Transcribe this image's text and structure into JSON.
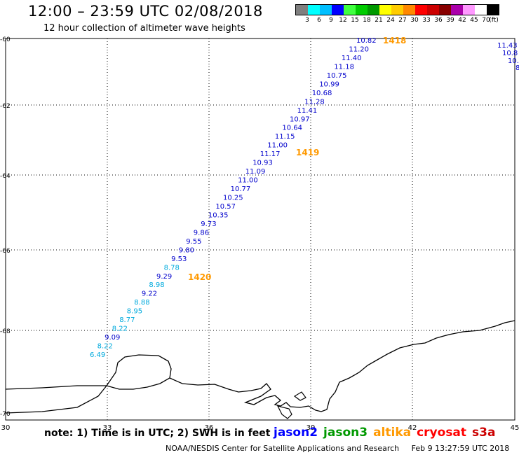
{
  "header": {
    "title": "12:00 – 23:59 UTC 02/08/2018",
    "subtitle": "12 hour collection of altimeter wave heights"
  },
  "legend": {
    "colors": [
      "#7f7f7f",
      "#00ffff",
      "#00bfff",
      "#0000ff",
      "#3fff3f",
      "#00cc00",
      "#009900",
      "#ffff00",
      "#ffcc00",
      "#ff8800",
      "#ff0000",
      "#cc0000",
      "#880000",
      "#aa00aa",
      "#ff99ff",
      "#ffffff",
      "#000000"
    ],
    "labels": [
      "3",
      "6",
      "9",
      "12",
      "15",
      "18",
      "21",
      "24",
      "27",
      "30",
      "33",
      "36",
      "39",
      "42",
      "45",
      "70",
      "(ft)"
    ]
  },
  "axes": {
    "x_ticks": [
      "30",
      "33",
      "36",
      "39",
      "42",
      "45"
    ],
    "y_ticks": [
      "-60",
      "-62",
      "-64",
      "-66",
      "-68",
      "-70"
    ]
  },
  "track_times": [
    "1418",
    "1419",
    "1420"
  ],
  "wave_heights": [
    {
      "v": "10.82",
      "c": "#0000cc"
    },
    {
      "v": "11.20",
      "c": "#0000cc"
    },
    {
      "v": "11.40",
      "c": "#0000cc"
    },
    {
      "v": "11.18",
      "c": "#0000cc"
    },
    {
      "v": "10.75",
      "c": "#0000cc"
    },
    {
      "v": "10.99",
      "c": "#0000cc"
    },
    {
      "v": "10.68",
      "c": "#0000cc"
    },
    {
      "v": "11.28",
      "c": "#0000cc"
    },
    {
      "v": "11.41",
      "c": "#0000cc"
    },
    {
      "v": "10.97",
      "c": "#0000cc"
    },
    {
      "v": "10.64",
      "c": "#0000cc"
    },
    {
      "v": "11.15",
      "c": "#0000cc"
    },
    {
      "v": "11.00",
      "c": "#0000cc"
    },
    {
      "v": "11.17",
      "c": "#0000cc"
    },
    {
      "v": "10.93",
      "c": "#0000cc"
    },
    {
      "v": "11.09",
      "c": "#0000cc"
    },
    {
      "v": "11.00",
      "c": "#0000cc"
    },
    {
      "v": "10.77",
      "c": "#0000cc"
    },
    {
      "v": "10.25",
      "c": "#0000cc"
    },
    {
      "v": "10.57",
      "c": "#0000cc"
    },
    {
      "v": "10.35",
      "c": "#0000cc"
    },
    {
      "v": "9.73",
      "c": "#0000cc"
    },
    {
      "v": "9.86",
      "c": "#0000cc"
    },
    {
      "v": "9.55",
      "c": "#0000cc"
    },
    {
      "v": "9.80",
      "c": "#0000cc"
    },
    {
      "v": "9.53",
      "c": "#0000cc"
    },
    {
      "v": "8.78",
      "c": "#00aadd"
    },
    {
      "v": "9.29",
      "c": "#0000cc"
    },
    {
      "v": "8.98",
      "c": "#00aadd"
    },
    {
      "v": "9.22",
      "c": "#0000cc"
    },
    {
      "v": "8.88",
      "c": "#00aadd"
    },
    {
      "v": "8.95",
      "c": "#00aadd"
    },
    {
      "v": "8.77",
      "c": "#00aadd"
    },
    {
      "v": "8.22",
      "c": "#00aadd"
    },
    {
      "v": "9.09",
      "c": "#0000cc"
    },
    {
      "v": "8.22",
      "c": "#00aadd"
    },
    {
      "v": "6.49",
      "c": "#00aadd"
    }
  ],
  "wave_heights_right": [
    "11.43",
    "10.8",
    "10.",
    "8"
  ],
  "footer": {
    "note": "note: 1) Time is in UTC; 2) SWH is in feet",
    "satellites": [
      {
        "name": "jason2",
        "color": "#0000ff"
      },
      {
        "name": "jason3",
        "color": "#009900"
      },
      {
        "name": "altika",
        "color": "#ff9900"
      },
      {
        "name": "cryosat",
        "color": "#ff0000"
      },
      {
        "name": "s3a",
        "color": "#cc0000"
      }
    ],
    "credit": "NOAA/NESDIS Center for Satellite Applications and Research",
    "timestamp": "Feb  9 13:27:59 UTC 2018"
  }
}
